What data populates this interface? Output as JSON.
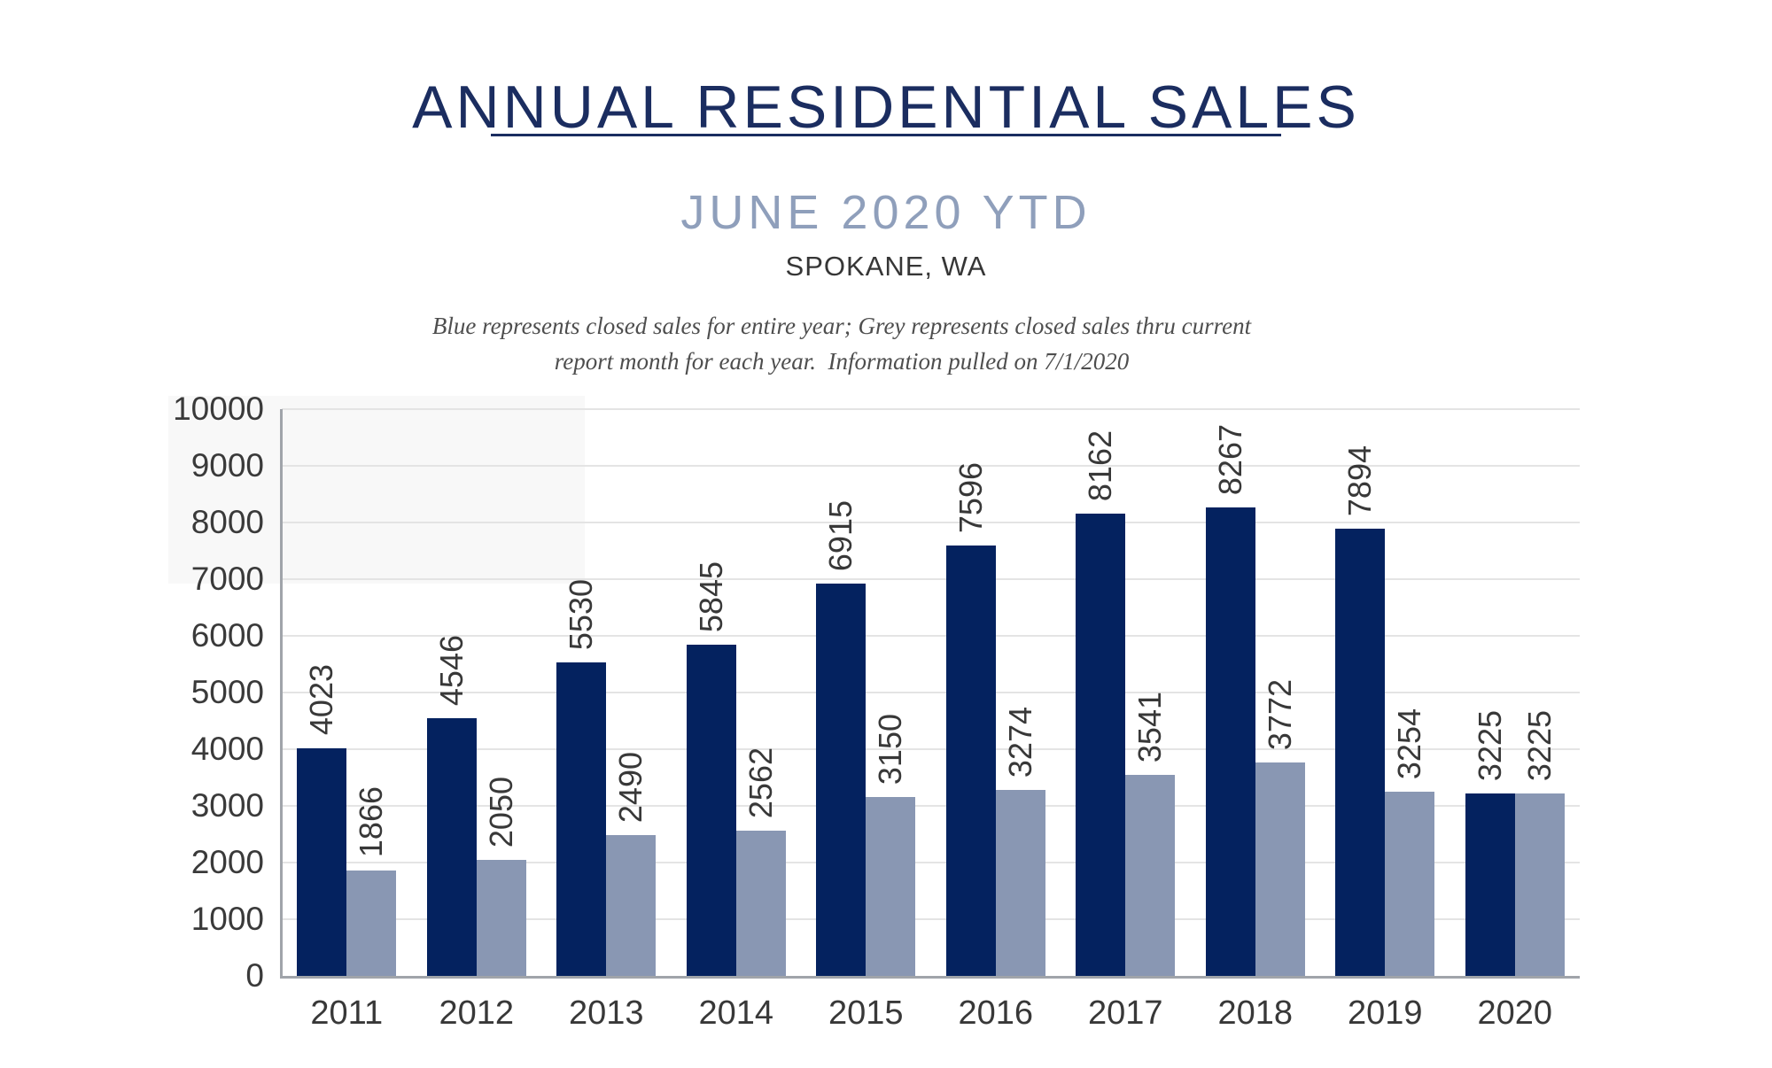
{
  "header": {
    "title": "ANNUAL RESIDENTIAL SALES",
    "subtitle": "JUNE 2020 YTD",
    "location": "SPOKANE, WA",
    "note_line1": "Blue represents closed sales for entire year; Grey represents closed sales thru current",
    "note_line2": "report month for each year.  Information pulled on 7/1/2020"
  },
  "colors": {
    "title_navy": "#1b2d60",
    "subtitle_blue_grey": "#8f9fbb",
    "bar_blue": "#04225f",
    "bar_grey": "#8997b3",
    "axis_text": "#3a3a3a",
    "gridline": "#e4e4e4",
    "axis_line": "#a0a4aa"
  },
  "chart_data": {
    "type": "bar",
    "title": "ANNUAL RESIDENTIAL SALES — JUNE 2020 YTD — SPOKANE, WA",
    "categories": [
      "2011",
      "2012",
      "2013",
      "2014",
      "2015",
      "2016",
      "2017",
      "2018",
      "2019",
      "2020"
    ],
    "series": [
      {
        "name": "Closed sales for entire year",
        "color": "#04225f",
        "values": [
          4023,
          4546,
          5530,
          5845,
          6915,
          7596,
          8162,
          8267,
          7894,
          3225
        ]
      },
      {
        "name": "Closed sales thru current report month",
        "color": "#8997b3",
        "values": [
          1866,
          2050,
          2490,
          2562,
          3150,
          3274,
          3541,
          3772,
          3254,
          3225
        ]
      }
    ],
    "xlabel": "",
    "ylabel": "",
    "ylim": [
      0,
      10000
    ],
    "ytick_step": 1000,
    "yticks": [
      0,
      1000,
      2000,
      3000,
      4000,
      5000,
      6000,
      7000,
      8000,
      9000,
      10000
    ],
    "grid": true,
    "legend_position": "none",
    "value_labels": "rotated 90° above each bar"
  }
}
